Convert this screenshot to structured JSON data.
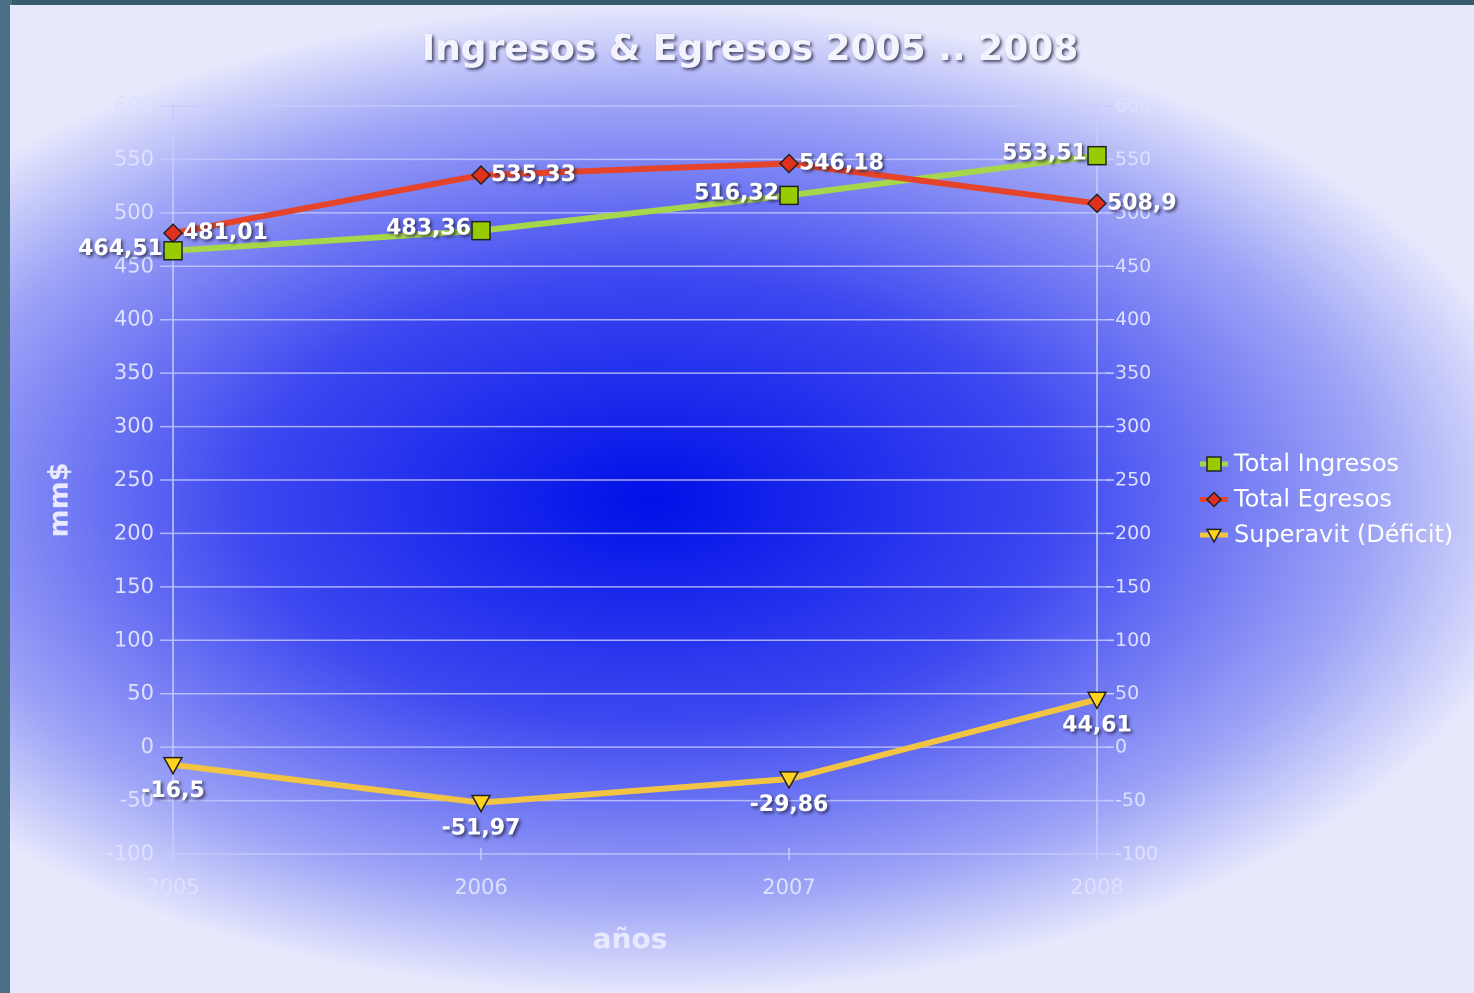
{
  "chart_data": {
    "type": "line",
    "title": "Ingresos & Egresos 2005 .. 2008",
    "y_label": "mm$",
    "x_label": "años",
    "categories": [
      "2005",
      "2006",
      "2007",
      "2008"
    ],
    "series": [
      {
        "name": "Total Ingresos",
        "color": "#a6d64a",
        "marker_color": "#99cc00",
        "marker": "square",
        "values": [
          464.51,
          483.36,
          516.32,
          553.51
        ],
        "value_labels": [
          "464,51",
          "483,36",
          "516,32",
          "553,51"
        ]
      },
      {
        "name": "Total Egresos",
        "color": "#e5432a",
        "marker_color": "#e0301e",
        "marker": "diamond",
        "values": [
          481.01,
          535.33,
          546.18,
          508.9
        ],
        "value_labels": [
          "481,01",
          "535,33",
          "546,18",
          "508,9"
        ]
      },
      {
        "name": "Superavit (Déficit)",
        "color": "#f2c443",
        "marker_color": "#ffd320",
        "marker": "triangle",
        "values": [
          -16.5,
          -51.97,
          -29.86,
          44.61
        ],
        "value_labels": [
          "-16,5",
          "-51,97",
          "-29,86",
          "44,61"
        ]
      }
    ],
    "ylim": [
      -100,
      600
    ],
    "yticks": [
      -100,
      -50,
      0,
      50,
      100,
      150,
      200,
      250,
      300,
      350,
      400,
      450,
      500,
      550,
      600
    ],
    "y2lim": [
      -100,
      600
    ],
    "y2ticks": [
      -100,
      -50,
      0,
      50,
      100,
      150,
      200,
      250,
      300,
      350,
      400,
      450,
      500,
      550,
      600
    ],
    "grid": true,
    "legend": "right"
  }
}
